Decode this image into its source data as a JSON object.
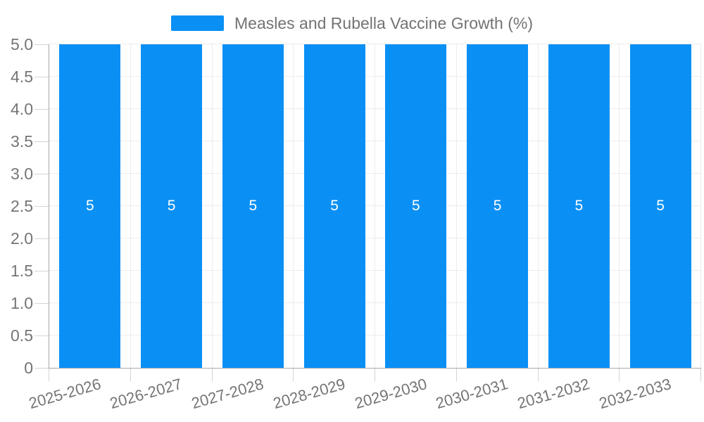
{
  "legend": {
    "label": "Measles and Rubella Vaccine Growth (%)",
    "swatch_color": "#0A90F5"
  },
  "chart_data": {
    "type": "bar",
    "title": "Measles and Rubella Vaccine Growth (%)",
    "categories": [
      "2025-2026",
      "2026-2027",
      "2027-2028",
      "2028-2029",
      "2029-2030",
      "2030-2031",
      "2031-2032",
      "2032-2033"
    ],
    "values": [
      5,
      5,
      5,
      5,
      5,
      5,
      5,
      5
    ],
    "data_labels": [
      "5",
      "5",
      "5",
      "5",
      "5",
      "5",
      "5",
      "5"
    ],
    "xlabel": "",
    "ylabel": "",
    "ylim": [
      0,
      5
    ],
    "ytick_step": 0.5,
    "ytick_labels": [
      "0",
      "0.5",
      "1.0",
      "1.5",
      "2.0",
      "2.5",
      "3.0",
      "3.5",
      "4.0",
      "4.5",
      "5.0"
    ],
    "grid": true,
    "legend_position": "top-center",
    "x_label_rotation_deg": -16,
    "colors": {
      "bar": "#0A90F5",
      "grid": "#ececec",
      "axis": "#a8a8a8",
      "tick": "#d4d4d4",
      "axis_label": "#757575",
      "legend_label": "#737373",
      "data_label": "#ffffff",
      "background": "#ffffff"
    }
  }
}
